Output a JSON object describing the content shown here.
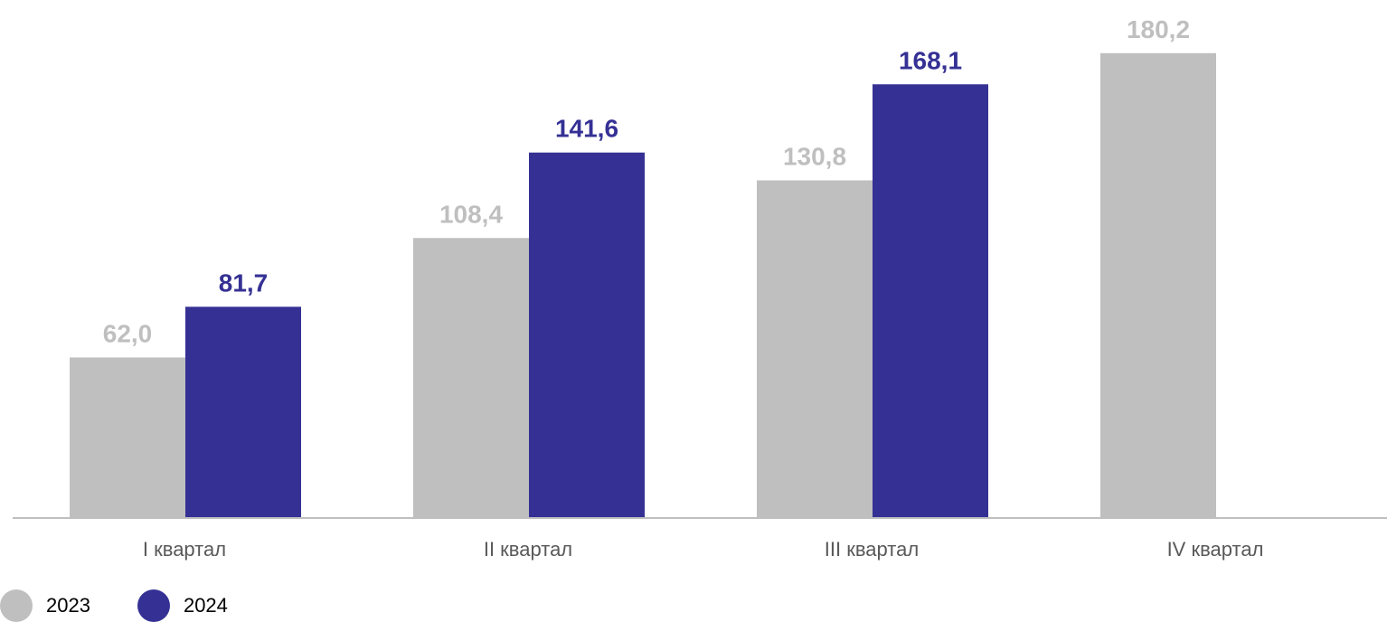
{
  "chart_data": {
    "type": "bar",
    "categories": [
      "I квартал",
      "II квартал",
      "III квартал",
      "IV квартал"
    ],
    "series": [
      {
        "name": "2023",
        "color": "#bfbfbf",
        "values": [
          62.0,
          108.4,
          130.8,
          180.2
        ],
        "labels": [
          "62,0",
          "108,4",
          "130,8",
          "180,2"
        ]
      },
      {
        "name": "2024",
        "color": "#353194",
        "values": [
          81.7,
          141.6,
          168.1,
          null
        ],
        "labels": [
          "81,7",
          "141,6",
          "168,1",
          null
        ]
      }
    ],
    "title": "",
    "xlabel": "",
    "ylabel": "",
    "ylim": [
      0,
      200
    ],
    "grid": false,
    "legend_position": "bottom-left",
    "axis_color": "#bfbfbf"
  }
}
